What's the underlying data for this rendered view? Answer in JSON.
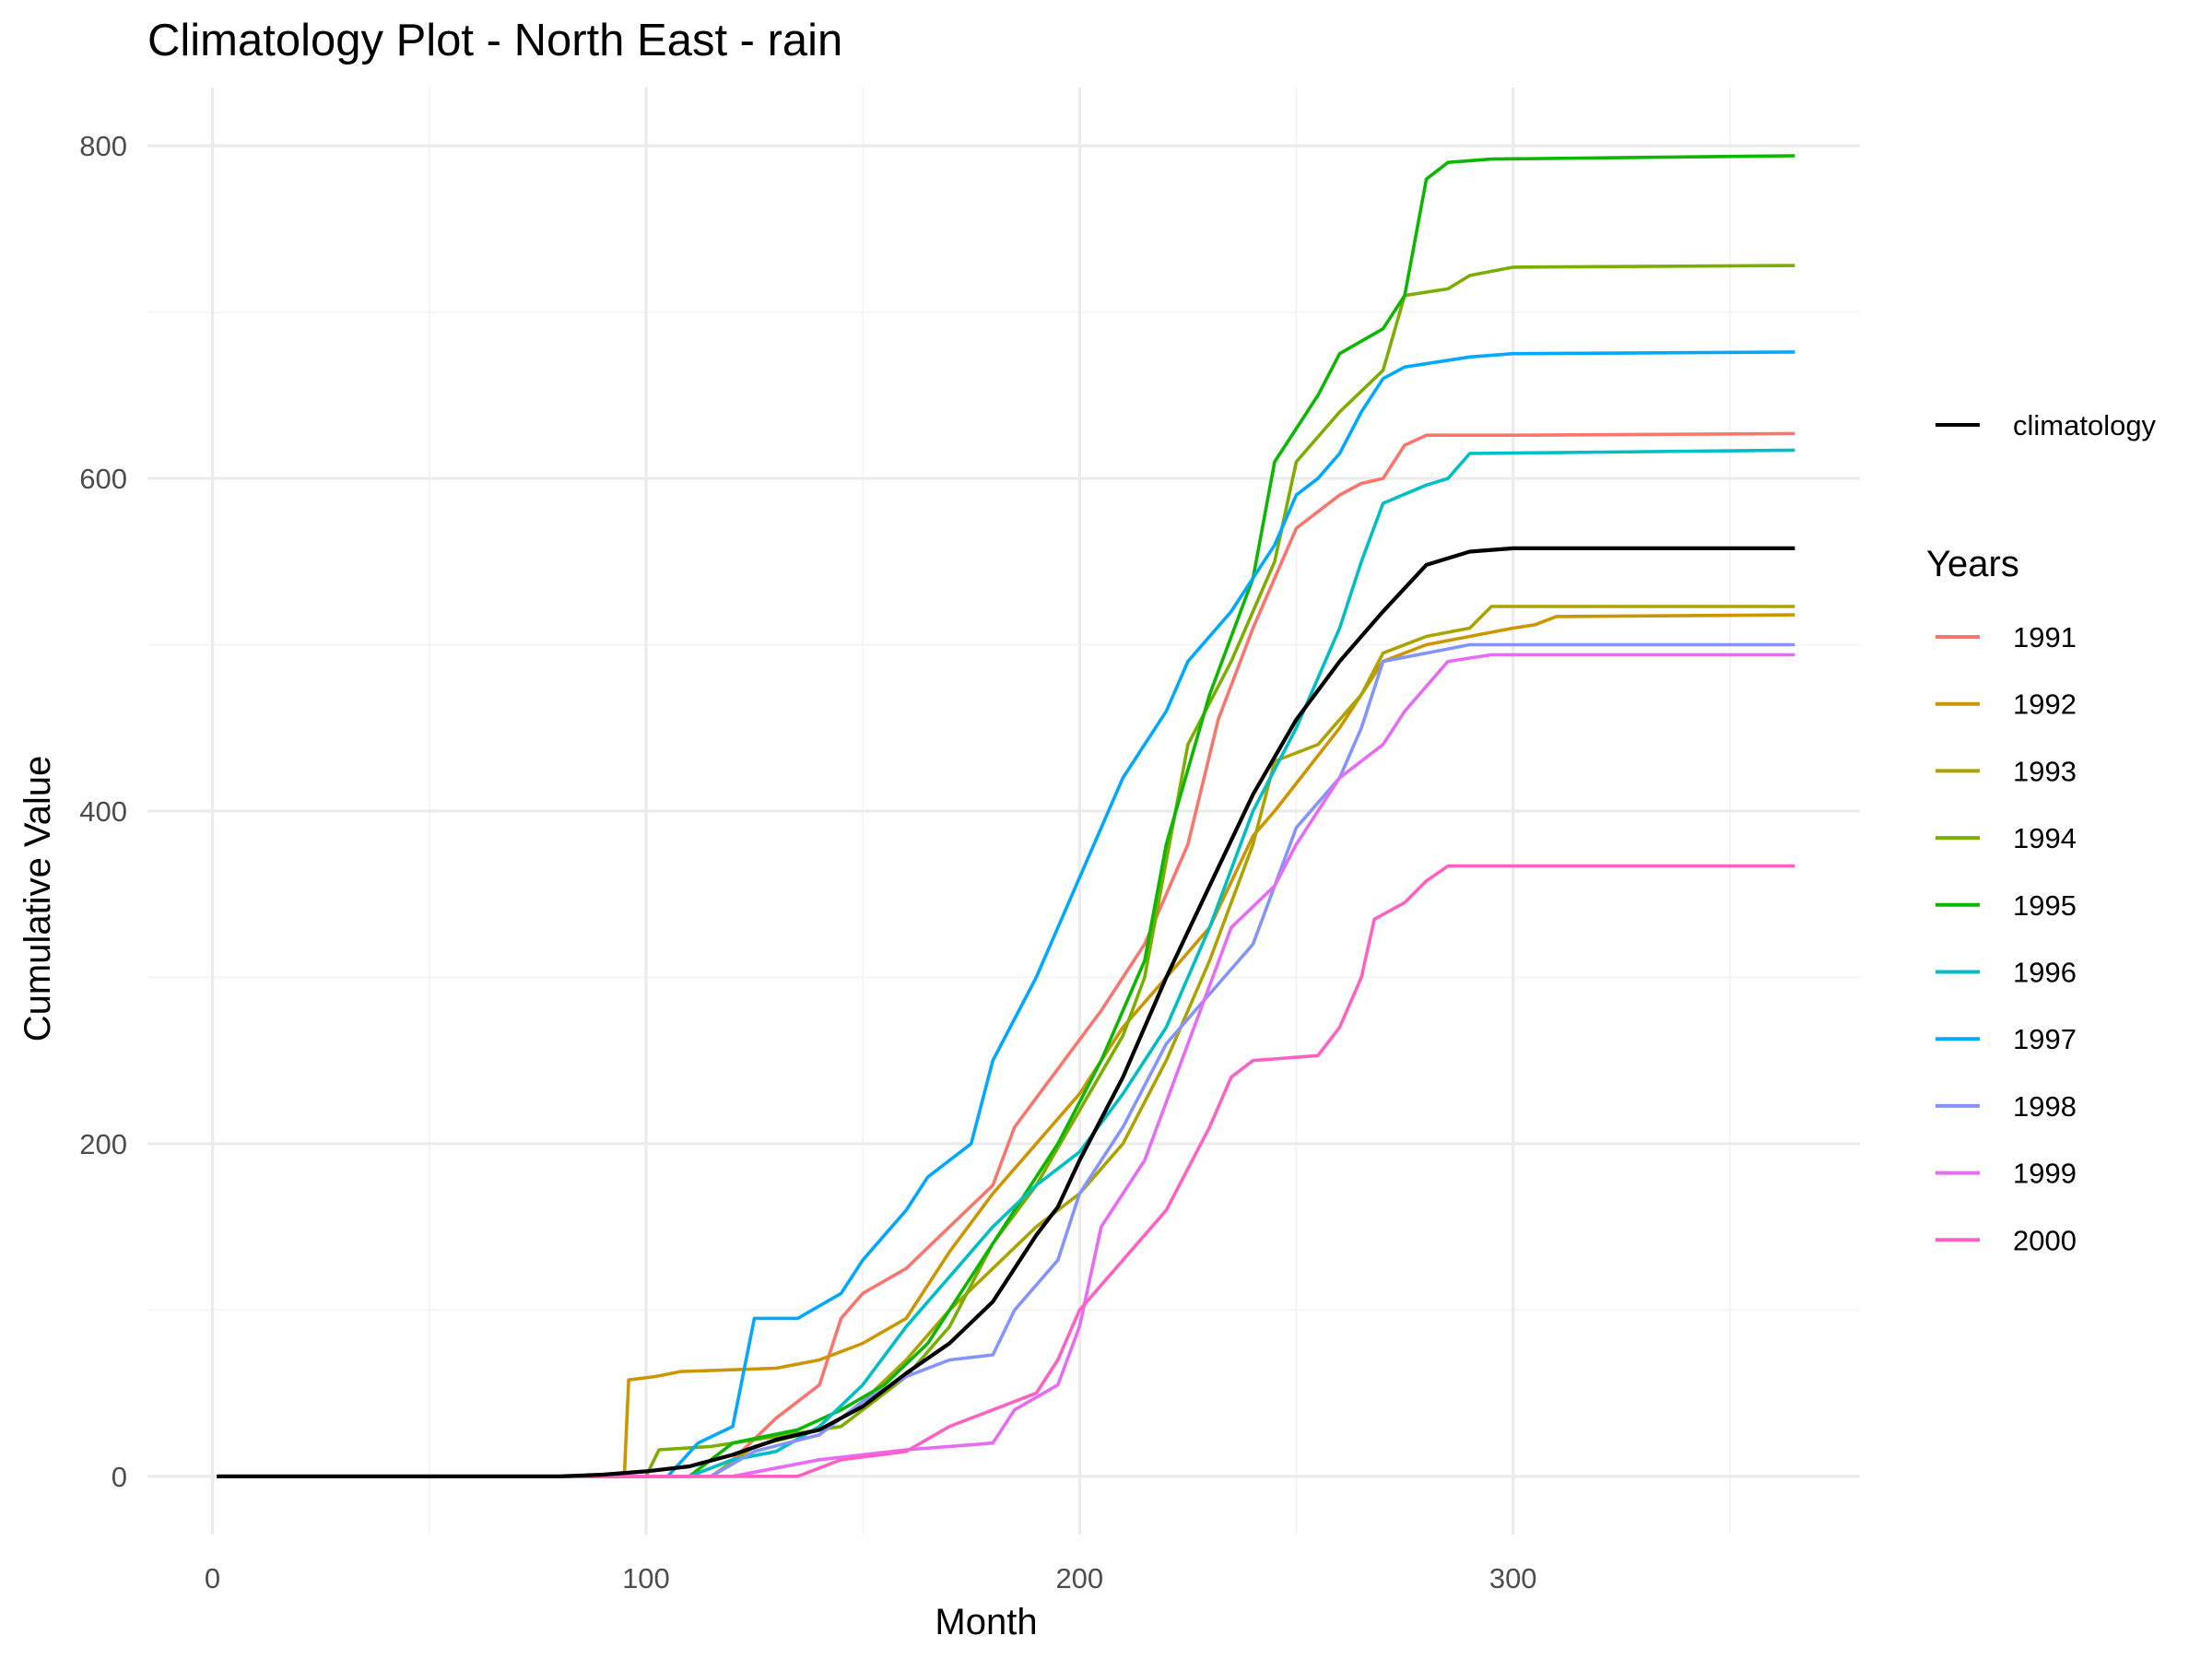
{
  "chart_data": {
    "type": "line",
    "title": "Climatology Plot - North East - rain",
    "xlabel": "Month",
    "ylabel": "Cumulative Value",
    "xlim": [
      -15,
      380
    ],
    "ylim": [
      -35,
      835
    ],
    "xticks": [
      0,
      100,
      200,
      300
    ],
    "yticks": [
      0,
      200,
      400,
      600,
      800
    ],
    "grid": true,
    "legend_position": "right",
    "legend_climatology_label": "climatology",
    "legend_title": "Years",
    "climatology": {
      "name": "climatology",
      "color": "#000000",
      "points": [
        [
          1,
          0
        ],
        [
          80,
          0
        ],
        [
          90,
          1
        ],
        [
          100,
          3
        ],
        [
          110,
          6
        ],
        [
          120,
          13
        ],
        [
          130,
          22
        ],
        [
          140,
          28
        ],
        [
          150,
          42
        ],
        [
          160,
          62
        ],
        [
          170,
          80
        ],
        [
          180,
          105
        ],
        [
          190,
          145
        ],
        [
          195,
          162
        ],
        [
          200,
          190
        ],
        [
          210,
          240
        ],
        [
          220,
          300
        ],
        [
          230,
          355
        ],
        [
          240,
          410
        ],
        [
          250,
          455
        ],
        [
          260,
          490
        ],
        [
          270,
          520
        ],
        [
          280,
          548
        ],
        [
          290,
          556
        ],
        [
          300,
          558
        ],
        [
          365,
          558
        ]
      ]
    },
    "series": [
      {
        "name": "1991",
        "color": "#F8766D",
        "points": [
          [
            1,
            0
          ],
          [
            110,
            0
          ],
          [
            120,
            10
          ],
          [
            130,
            35
          ],
          [
            140,
            55
          ],
          [
            145,
            95
          ],
          [
            150,
            110
          ],
          [
            160,
            125
          ],
          [
            170,
            150
          ],
          [
            180,
            175
          ],
          [
            185,
            210
          ],
          [
            195,
            245
          ],
          [
            205,
            280
          ],
          [
            215,
            320
          ],
          [
            225,
            380
          ],
          [
            232,
            455
          ],
          [
            240,
            510
          ],
          [
            245,
            540
          ],
          [
            250,
            570
          ],
          [
            260,
            590
          ],
          [
            265,
            597
          ],
          [
            270,
            600
          ],
          [
            275,
            620
          ],
          [
            280,
            626
          ],
          [
            300,
            626
          ],
          [
            365,
            627
          ]
        ]
      },
      {
        "name": "1992",
        "color": "#CD9600",
        "points": [
          [
            1,
            0
          ],
          [
            95,
            0
          ],
          [
            96,
            58
          ],
          [
            102,
            60
          ],
          [
            108,
            63
          ],
          [
            130,
            65
          ],
          [
            140,
            70
          ],
          [
            145,
            75
          ],
          [
            150,
            80
          ],
          [
            160,
            95
          ],
          [
            170,
            135
          ],
          [
            180,
            170
          ],
          [
            190,
            200
          ],
          [
            200,
            230
          ],
          [
            210,
            270
          ],
          [
            220,
            300
          ],
          [
            230,
            330
          ],
          [
            240,
            385
          ],
          [
            245,
            400
          ],
          [
            260,
            450
          ],
          [
            270,
            490
          ],
          [
            280,
            500
          ],
          [
            300,
            510
          ],
          [
            305,
            512
          ],
          [
            310,
            517
          ],
          [
            365,
            518
          ]
        ]
      },
      {
        "name": "1993",
        "color": "#ABA300",
        "points": [
          [
            1,
            0
          ],
          [
            115,
            0
          ],
          [
            125,
            18
          ],
          [
            140,
            28
          ],
          [
            145,
            35
          ],
          [
            150,
            45
          ],
          [
            160,
            70
          ],
          [
            170,
            100
          ],
          [
            180,
            125
          ],
          [
            190,
            150
          ],
          [
            200,
            170
          ],
          [
            210,
            200
          ],
          [
            220,
            250
          ],
          [
            230,
            310
          ],
          [
            240,
            380
          ],
          [
            245,
            430
          ],
          [
            255,
            440
          ],
          [
            265,
            470
          ],
          [
            270,
            495
          ],
          [
            280,
            505
          ],
          [
            290,
            510
          ],
          [
            295,
            523
          ],
          [
            365,
            523
          ]
        ]
      },
      {
        "name": "1994",
        "color": "#7CAE00",
        "points": [
          [
            1,
            0
          ],
          [
            100,
            0
          ],
          [
            103,
            16
          ],
          [
            115,
            18
          ],
          [
            125,
            22
          ],
          [
            145,
            30
          ],
          [
            160,
            60
          ],
          [
            170,
            90
          ],
          [
            180,
            140
          ],
          [
            190,
            175
          ],
          [
            200,
            220
          ],
          [
            210,
            265
          ],
          [
            215,
            300
          ],
          [
            220,
            370
          ],
          [
            225,
            440
          ],
          [
            235,
            490
          ],
          [
            245,
            550
          ],
          [
            250,
            610
          ],
          [
            260,
            640
          ],
          [
            270,
            665
          ],
          [
            275,
            710
          ],
          [
            285,
            714
          ],
          [
            290,
            722
          ],
          [
            300,
            727
          ],
          [
            365,
            728
          ]
        ]
      },
      {
        "name": "1995",
        "color": "#0CB702",
        "points": [
          [
            1,
            0
          ],
          [
            110,
            0
          ],
          [
            120,
            20
          ],
          [
            135,
            28
          ],
          [
            145,
            40
          ],
          [
            155,
            55
          ],
          [
            165,
            80
          ],
          [
            175,
            120
          ],
          [
            185,
            160
          ],
          [
            195,
            200
          ],
          [
            205,
            250
          ],
          [
            215,
            310
          ],
          [
            220,
            380
          ],
          [
            230,
            470
          ],
          [
            240,
            540
          ],
          [
            245,
            610
          ],
          [
            255,
            650
          ],
          [
            260,
            675
          ],
          [
            270,
            690
          ],
          [
            275,
            710
          ],
          [
            280,
            780
          ],
          [
            285,
            790
          ],
          [
            295,
            792
          ],
          [
            365,
            794
          ]
        ]
      },
      {
        "name": "1996",
        "color": "#00BFC4",
        "points": [
          [
            1,
            0
          ],
          [
            110,
            0
          ],
          [
            120,
            10
          ],
          [
            130,
            15
          ],
          [
            140,
            30
          ],
          [
            150,
            55
          ],
          [
            160,
            90
          ],
          [
            170,
            120
          ],
          [
            180,
            150
          ],
          [
            190,
            175
          ],
          [
            200,
            195
          ],
          [
            210,
            230
          ],
          [
            220,
            270
          ],
          [
            230,
            330
          ],
          [
            240,
            400
          ],
          [
            250,
            450
          ],
          [
            260,
            510
          ],
          [
            265,
            550
          ],
          [
            270,
            585
          ],
          [
            280,
            596
          ],
          [
            285,
            600
          ],
          [
            290,
            615
          ],
          [
            365,
            617
          ]
        ]
      },
      {
        "name": "1997",
        "color": "#00A9FF",
        "points": [
          [
            1,
            0
          ],
          [
            105,
            0
          ],
          [
            112,
            20
          ],
          [
            120,
            30
          ],
          [
            125,
            95
          ],
          [
            135,
            95
          ],
          [
            145,
            110
          ],
          [
            150,
            130
          ],
          [
            160,
            160
          ],
          [
            165,
            180
          ],
          [
            175,
            200
          ],
          [
            180,
            250
          ],
          [
            190,
            300
          ],
          [
            200,
            360
          ],
          [
            210,
            420
          ],
          [
            220,
            460
          ],
          [
            225,
            490
          ],
          [
            235,
            520
          ],
          [
            245,
            560
          ],
          [
            250,
            590
          ],
          [
            255,
            600
          ],
          [
            260,
            615
          ],
          [
            265,
            640
          ],
          [
            270,
            660
          ],
          [
            275,
            667
          ],
          [
            290,
            673
          ],
          [
            300,
            675
          ],
          [
            365,
            676
          ]
        ]
      },
      {
        "name": "1998",
        "color": "#8494FF",
        "points": [
          [
            1,
            0
          ],
          [
            115,
            0
          ],
          [
            125,
            15
          ],
          [
            140,
            25
          ],
          [
            150,
            45
          ],
          [
            160,
            60
          ],
          [
            170,
            70
          ],
          [
            180,
            73
          ],
          [
            185,
            100
          ],
          [
            195,
            130
          ],
          [
            200,
            170
          ],
          [
            210,
            210
          ],
          [
            220,
            260
          ],
          [
            230,
            290
          ],
          [
            240,
            320
          ],
          [
            250,
            390
          ],
          [
            260,
            420
          ],
          [
            265,
            450
          ],
          [
            270,
            490
          ],
          [
            280,
            495
          ],
          [
            290,
            500
          ],
          [
            365,
            500
          ]
        ]
      },
      {
        "name": "1999",
        "color": "#E76BF3",
        "points": [
          [
            1,
            0
          ],
          [
            120,
            0
          ],
          [
            130,
            5
          ],
          [
            140,
            10
          ],
          [
            150,
            13
          ],
          [
            160,
            16
          ],
          [
            170,
            18
          ],
          [
            180,
            20
          ],
          [
            185,
            40
          ],
          [
            195,
            55
          ],
          [
            200,
            90
          ],
          [
            205,
            150
          ],
          [
            215,
            190
          ],
          [
            225,
            260
          ],
          [
            235,
            330
          ],
          [
            245,
            355
          ],
          [
            250,
            380
          ],
          [
            260,
            420
          ],
          [
            270,
            440
          ],
          [
            275,
            460
          ],
          [
            285,
            490
          ],
          [
            295,
            494
          ],
          [
            365,
            494
          ]
        ]
      },
      {
        "name": "2000",
        "color": "#FF61C3",
        "points": [
          [
            1,
            0
          ],
          [
            135,
            0
          ],
          [
            145,
            10
          ],
          [
            160,
            15
          ],
          [
            170,
            30
          ],
          [
            180,
            40
          ],
          [
            190,
            50
          ],
          [
            195,
            70
          ],
          [
            200,
            100
          ],
          [
            210,
            130
          ],
          [
            220,
            160
          ],
          [
            230,
            210
          ],
          [
            235,
            240
          ],
          [
            240,
            250
          ],
          [
            255,
            253
          ],
          [
            260,
            270
          ],
          [
            265,
            300
          ],
          [
            268,
            335
          ],
          [
            275,
            345
          ],
          [
            280,
            358
          ],
          [
            285,
            367
          ],
          [
            365,
            367
          ]
        ]
      }
    ]
  }
}
